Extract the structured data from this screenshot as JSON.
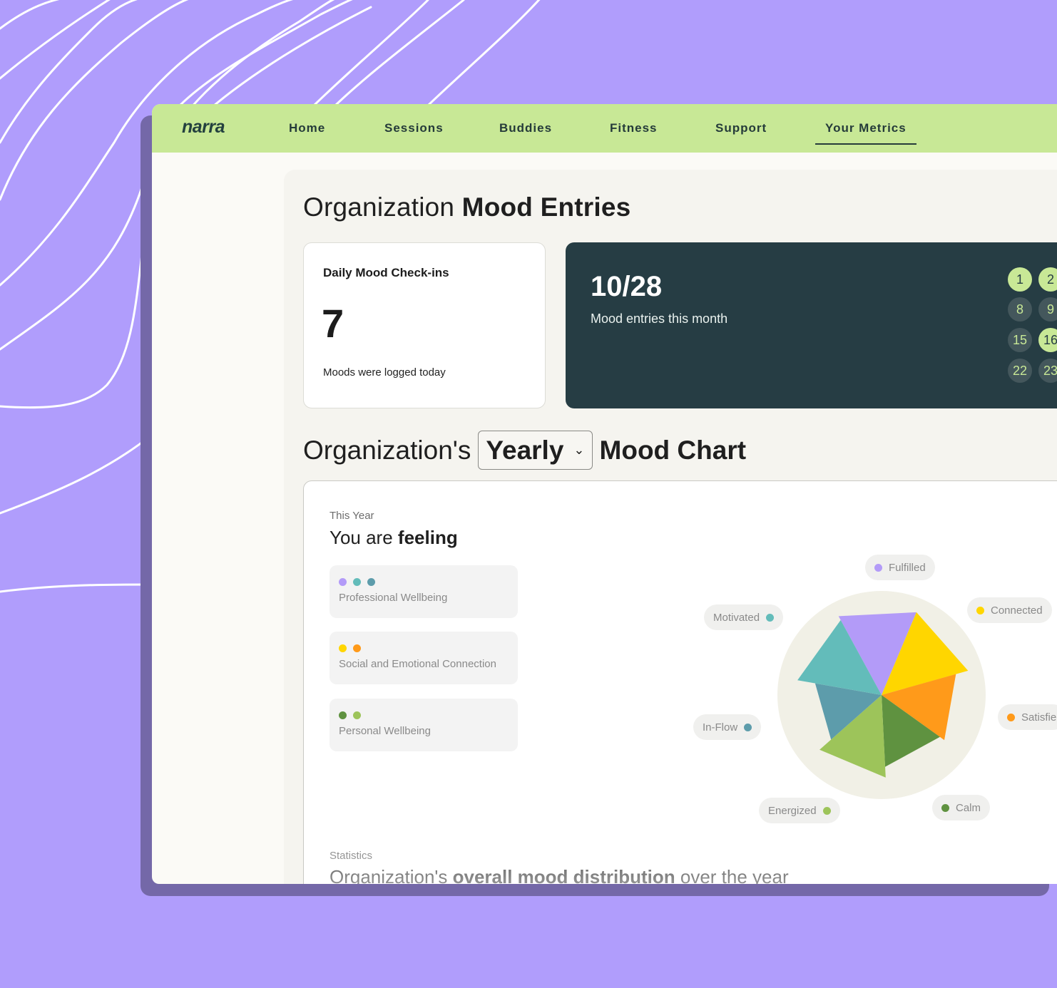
{
  "colors": {
    "background": "#b09dfc",
    "nav": "#c8e896",
    "dark_card": "#263d44",
    "fulfilled": "#b39bf8",
    "connected": "#ffd600",
    "satisfied": "#ff9a1a",
    "calm": "#5f9240",
    "energized": "#9dc45a",
    "in_flow": "#5d9cab",
    "motivated": "#63bcba"
  },
  "nav": {
    "logo": "narra",
    "items": [
      "Home",
      "Sessions",
      "Buddies",
      "Fitness",
      "Support",
      "Your Metrics"
    ],
    "active": "Your Metrics"
  },
  "page": {
    "title_light": "Organization",
    "title_bold": "Mood Entries"
  },
  "daily_card": {
    "title": "Daily Mood Check-ins",
    "value": "7",
    "caption": "Moods were logged today"
  },
  "month_card": {
    "value": "10/28",
    "caption": "Mood entries this month",
    "days": [
      {
        "label": "1",
        "logged": true
      },
      {
        "label": "2",
        "logged": true
      },
      {
        "label": "8",
        "logged": false
      },
      {
        "label": "9",
        "logged": false
      },
      {
        "label": "15",
        "logged": false
      },
      {
        "label": "16",
        "logged": true
      },
      {
        "label": "22",
        "logged": false
      },
      {
        "label": "23",
        "logged": false
      }
    ]
  },
  "chart_section": {
    "prefix": "Organization's",
    "period": "Yearly",
    "suffix": "Mood Chart",
    "kicker": "This Year",
    "heading_light": "You are",
    "heading_bold": "feeling",
    "categories": [
      {
        "label": "Professional Wellbeing",
        "dots": [
          "#b39bf8",
          "#63bcba",
          "#5d9cab"
        ]
      },
      {
        "label": "Social and Emotional Connection",
        "dots": [
          "#ffd600",
          "#ff9a1a"
        ]
      },
      {
        "label": "Personal Wellbeing",
        "dots": [
          "#5f9240",
          "#9dc45a"
        ]
      }
    ],
    "legend_icons": [
      "chevron-down-icon"
    ]
  },
  "chart_data": {
    "type": "pie",
    "chart_kind": "polar-area",
    "series": [
      {
        "name": "Fulfilled",
        "relative_magnitude": 1.0,
        "color": "#b39bf8"
      },
      {
        "name": "Connected",
        "relative_magnitude": 1.0,
        "color": "#ffd600"
      },
      {
        "name": "Satisfied",
        "relative_magnitude": 0.86,
        "color": "#ff9a1a"
      },
      {
        "name": "Calm",
        "relative_magnitude": 0.8,
        "color": "#5f9240"
      },
      {
        "name": "Energized",
        "relative_magnitude": 0.92,
        "color": "#9dc45a"
      },
      {
        "name": "In-Flow",
        "relative_magnitude": 0.75,
        "color": "#5d9cab"
      },
      {
        "name": "Motivated",
        "relative_magnitude": 0.95,
        "color": "#63bcba"
      }
    ]
  },
  "legend": [
    {
      "label": "Fulfilled",
      "color": "#b39bf8"
    },
    {
      "label": "Connected",
      "color": "#ffd600"
    },
    {
      "label": "Satisfie",
      "color": "#ff9a1a"
    },
    {
      "label": "Calm",
      "color": "#5f9240"
    },
    {
      "label": "Energized",
      "color": "#9dc45a"
    },
    {
      "label": "In-Flow",
      "color": "#5d9cab"
    },
    {
      "label": "Motivated",
      "color": "#63bcba"
    }
  ],
  "statistics": {
    "kicker": "Statistics",
    "heading_pre": "Organization's",
    "heading_bold": "overall mood distribution",
    "heading_post": "over the year"
  }
}
